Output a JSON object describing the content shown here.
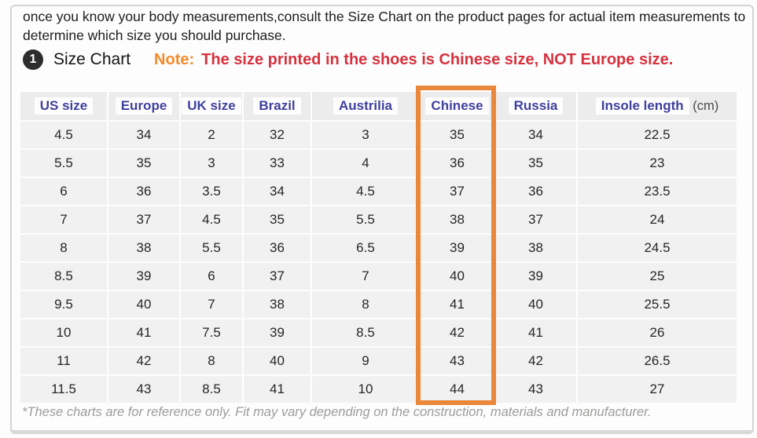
{
  "intro": {
    "text": "once you know your body measurements,consult the Size Chart on the product pages for actual item measurements to determine which size you should purchase."
  },
  "heading": {
    "badge": "1",
    "title": "Size Chart",
    "note_label": "Note:",
    "note_text": "The size printed in the shoes is Chinese size, NOT Europe size."
  },
  "chart_data": {
    "type": "table",
    "title": "Size Chart",
    "highlighted_column": "Chinese",
    "columns": [
      {
        "label": "US size"
      },
      {
        "label": "Europe"
      },
      {
        "label": "UK size"
      },
      {
        "label": "Brazil"
      },
      {
        "label": "Austrilia"
      },
      {
        "label": "Chinese"
      },
      {
        "label": "Russia"
      },
      {
        "label": "Insole length",
        "unit": "(cm)"
      }
    ],
    "rows": [
      [
        "4.5",
        "34",
        "2",
        "32",
        "3",
        "35",
        "34",
        "22.5"
      ],
      [
        "5.5",
        "35",
        "3",
        "33",
        "4",
        "36",
        "35",
        "23"
      ],
      [
        "6",
        "36",
        "3.5",
        "34",
        "4.5",
        "37",
        "36",
        "23.5"
      ],
      [
        "7",
        "37",
        "4.5",
        "35",
        "5.5",
        "38",
        "37",
        "24"
      ],
      [
        "8",
        "38",
        "5.5",
        "36",
        "6.5",
        "39",
        "38",
        "24.5"
      ],
      [
        "8.5",
        "39",
        "6",
        "37",
        "7",
        "40",
        "39",
        "25"
      ],
      [
        "9.5",
        "40",
        "7",
        "38",
        "8",
        "41",
        "40",
        "25.5"
      ],
      [
        "10",
        "41",
        "7.5",
        "39",
        "8.5",
        "42",
        "41",
        "26"
      ],
      [
        "11",
        "42",
        "8",
        "40",
        "9",
        "43",
        "42",
        "26.5"
      ],
      [
        "11.5",
        "43",
        "8.5",
        "41",
        "10",
        "44",
        "43",
        "27"
      ]
    ]
  },
  "footnote": "*These charts are for reference only. Fit may vary depending on the construction, materials and manufacturer.",
  "colors": {
    "header_text": "#3f3f9e",
    "note_orange": "#f6892b",
    "warning_red": "#d6323e",
    "highlight_box": "#e9883a",
    "row_background": "#f1f1f1"
  }
}
